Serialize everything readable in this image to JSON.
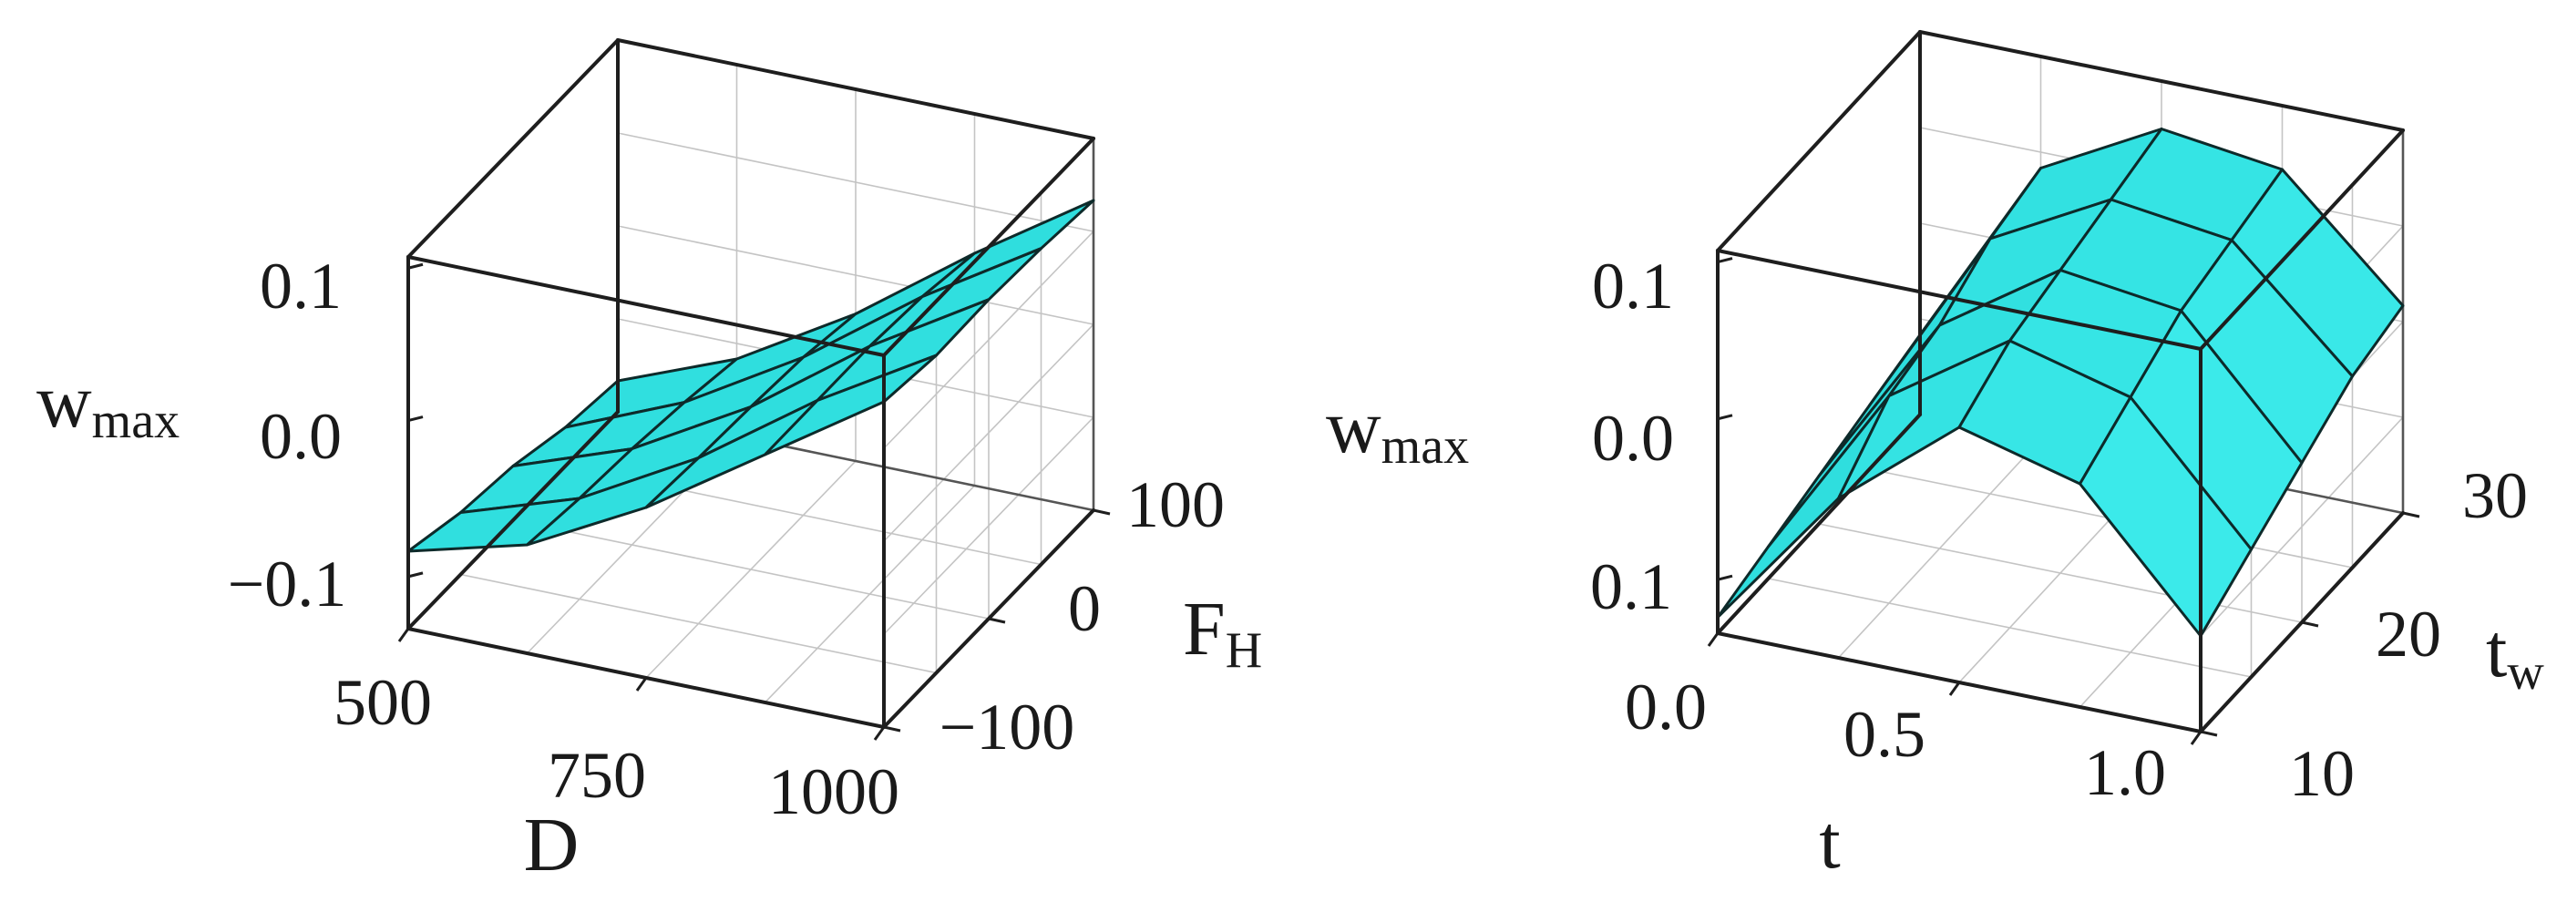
{
  "chart_data": [
    {
      "type": "surface3d",
      "surface_color": "#33e2e2",
      "xlabel": "D",
      "ylabel": "F",
      "ylabel_sub": "H",
      "zlabel": "w",
      "zlabel_sub": "max",
      "x_ticks": [
        "500",
        "750",
        "1000"
      ],
      "y_ticks": [
        "−100",
        "0",
        "100"
      ],
      "z_ticks": [
        "−0.1",
        "0.0",
        "0.1"
      ],
      "x": [
        500,
        625,
        750,
        875,
        1000
      ],
      "y": [
        -100,
        -50,
        0,
        50,
        100
      ],
      "z": [
        [
          -0.07,
          -0.05,
          -0.01,
          0.04,
          0.09
        ],
        [
          -0.08,
          -0.055,
          -0.013,
          0.04,
          0.085
        ],
        [
          -0.085,
          -0.058,
          -0.015,
          0.04,
          0.086
        ],
        [
          -0.095,
          -0.063,
          -0.018,
          0.037,
          0.084
        ],
        [
          -0.1,
          -0.07,
          -0.025,
          0.03,
          0.08
        ]
      ],
      "xlim": [
        500,
        1000
      ],
      "ylim": [
        -100,
        100
      ],
      "zlim": [
        -0.12,
        0.12
      ]
    },
    {
      "type": "surface3d",
      "surface_color": "#33e2e2",
      "xlabel": "t",
      "ylabel": "t",
      "ylabel_sub": "w",
      "zlabel": "w",
      "zlabel_sub": "max",
      "x_ticks": [
        "0.0",
        "0.5",
        "1.0"
      ],
      "y_ticks": [
        "10",
        "20",
        "30"
      ],
      "z_ticks": [
        "0.1",
        "0.0",
        "0.1"
      ],
      "x": [
        0.0,
        0.25,
        0.5,
        0.75,
        1.0
      ],
      "y": [
        10,
        15,
        20,
        25,
        30
      ],
      "z": [
        [
          -0.11,
          -0.02,
          0.04,
          0.02,
          -0.06
        ],
        [
          -0.1,
          0.01,
          0.06,
          0.04,
          -0.04
        ],
        [
          -0.09,
          0.02,
          0.07,
          0.06,
          -0.02
        ],
        [
          -0.08,
          0.04,
          0.08,
          0.07,
          0.0
        ],
        [
          -0.07,
          0.05,
          0.09,
          0.08,
          0.01
        ]
      ],
      "xlim": [
        0.0,
        1.0
      ],
      "ylim": [
        10,
        30
      ],
      "zlim": [
        -0.12,
        0.12
      ]
    }
  ]
}
